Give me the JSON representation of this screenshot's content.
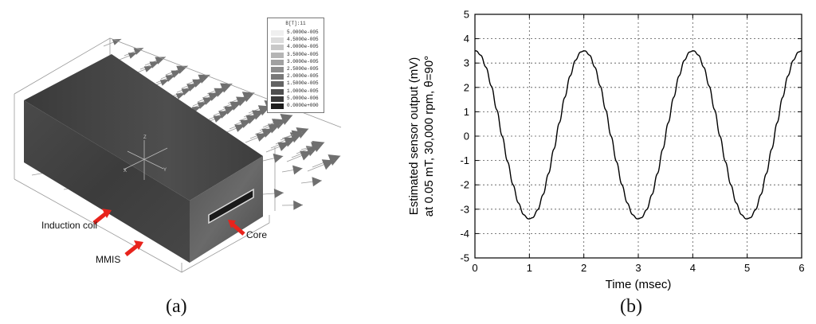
{
  "figure_a": {
    "caption": "(a)",
    "legend": {
      "title": "B[T]:11",
      "entries": [
        {
          "label": "5.0000e-005",
          "color": "#efefef"
        },
        {
          "label": "4.5000e-005",
          "color": "#dcdcdc"
        },
        {
          "label": "4.0000e-005",
          "color": "#c8c8c8"
        },
        {
          "label": "3.5000e-005",
          "color": "#b5b5b5"
        },
        {
          "label": "3.0000e-005",
          "color": "#a1a1a1"
        },
        {
          "label": "2.5000e-005",
          "color": "#8d8d8d"
        },
        {
          "label": "2.0000e-005",
          "color": "#797979"
        },
        {
          "label": "1.5000e-005",
          "color": "#646464"
        },
        {
          "label": "1.0000e-005",
          "color": "#4e4e4e"
        },
        {
          "label": "5.0000e-006",
          "color": "#383838"
        },
        {
          "label": "0.0000e+000",
          "color": "#1e1e1e"
        }
      ]
    },
    "labels": {
      "induction_coil": "Induction coil",
      "mmis": "MMIS",
      "core": "Core"
    },
    "axis_letters": {
      "z": "Z",
      "x": "X",
      "y": "Y"
    },
    "arrow_color": "#e8231c"
  },
  "chart_data": {
    "type": "line",
    "caption": "(b)",
    "xlabel": "Time (msec)",
    "ylabel_line1": "Estimated sensor output (mV)",
    "ylabel_line2": "at 0.05 mT, 30,000 rpm, θ=90°",
    "xlim": [
      0,
      6
    ],
    "ylim": [
      -5,
      5
    ],
    "xticks": [
      0,
      1,
      2,
      3,
      4,
      5,
      6
    ],
    "yticks": [
      -5,
      -4,
      -3,
      -2,
      -1,
      0,
      1,
      2,
      3,
      4,
      5
    ],
    "grid": true,
    "series": [
      {
        "amplitude": 3.5,
        "period_msec": 2.0,
        "peak_at_msec": 0.0,
        "ripple_amplitude": 0.12,
        "ripple_period_msec": 0.1,
        "color": "#000000",
        "x": [
          0,
          0.25,
          0.5,
          0.75,
          1,
          1.25,
          1.5,
          1.75,
          2,
          2.25,
          2.5,
          2.75,
          3,
          3.25,
          3.5,
          3.75,
          4,
          4.25,
          4.5,
          4.75,
          5,
          5.25,
          5.5,
          5.75,
          6
        ],
        "y": [
          3.5,
          2.47,
          0,
          -2.47,
          -3.4,
          -2.47,
          0,
          2.47,
          3.55,
          2.47,
          0,
          -2.47,
          -3.4,
          -2.47,
          0,
          2.47,
          3.55,
          2.47,
          0,
          -2.47,
          -3.4,
          -2.47,
          0,
          2.47,
          3.55
        ]
      }
    ]
  }
}
